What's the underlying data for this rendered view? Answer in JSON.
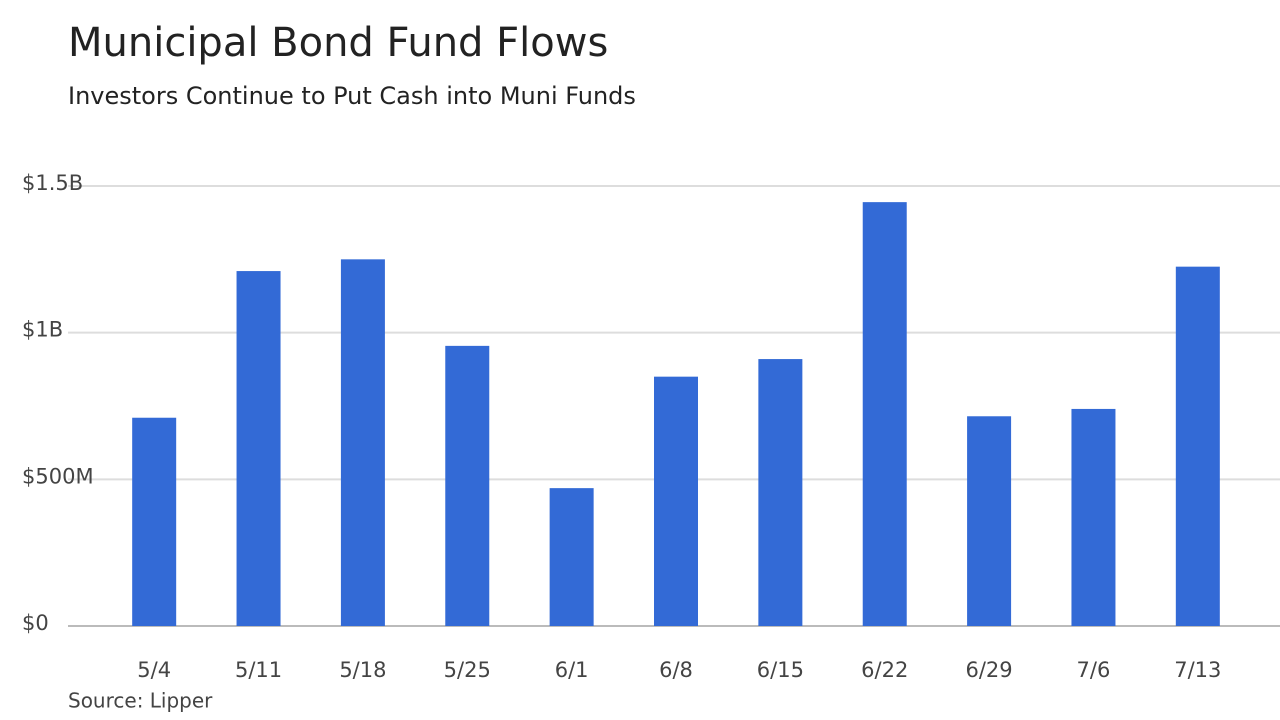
{
  "chart_data": {
    "type": "bar",
    "title": "Municipal Bond Fund Flows",
    "subtitle": "Investors Continue to Put Cash into Muni Funds",
    "source": "Source: Lipper",
    "categories": [
      "5/4",
      "5/11",
      "5/18",
      "5/25",
      "6/1",
      "6/8",
      "6/15",
      "6/22",
      "6/29",
      "7/6",
      "7/13"
    ],
    "values": [
      710000000,
      1210000000,
      1250000000,
      955000000,
      470000000,
      850000000,
      910000000,
      1445000000,
      715000000,
      740000000,
      1225000000
    ],
    "color": "#336ad6",
    "ylim": [
      0,
      1500000000
    ],
    "yticks": [
      {
        "value": 0,
        "label": "$0"
      },
      {
        "value": 500000000,
        "label": "$500M"
      },
      {
        "value": 1000000000,
        "label": "$1B"
      },
      {
        "value": 1500000000,
        "label": "$1.5B"
      }
    ],
    "grid": true
  }
}
